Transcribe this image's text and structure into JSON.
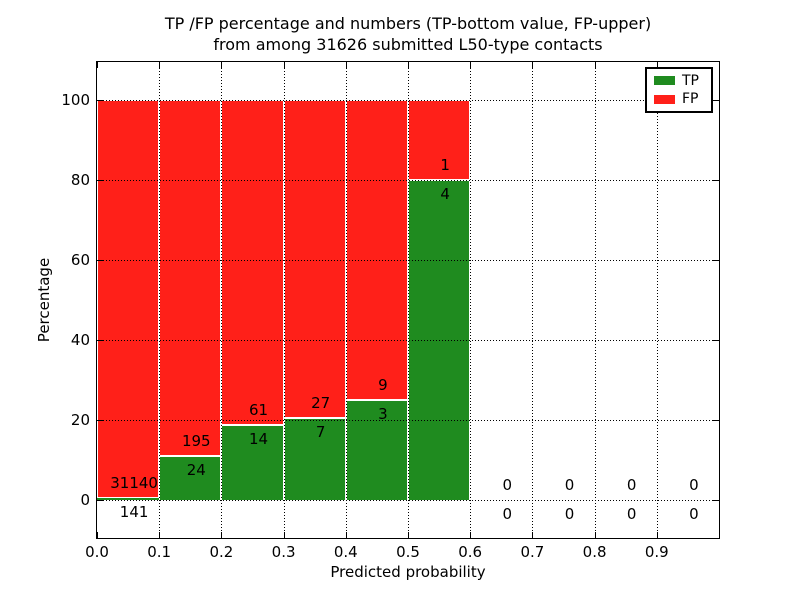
{
  "title": {
    "line1": "TP /FP percentage and numbers (TP-bottom value, FP-upper)",
    "line2": "from among 31626 submitted L50-type contacts"
  },
  "axes": {
    "xlabel": "Predicted probability",
    "ylabel": "Percentage",
    "x_tick_labels": [
      "0.0",
      "0.1",
      "0.2",
      "0.3",
      "0.4",
      "0.5",
      "0.6",
      "0.7",
      "0.8",
      "0.9"
    ],
    "x_tick_values": [
      0.0,
      0.1,
      0.2,
      0.3,
      0.4,
      0.5,
      0.6,
      0.7,
      0.8,
      0.9
    ],
    "y_tick_labels": [
      "0",
      "20",
      "40",
      "60",
      "80",
      "100"
    ],
    "y_tick_values": [
      0,
      20,
      40,
      60,
      80,
      100
    ],
    "xlim": [
      0.0,
      1.0
    ],
    "ylim": [
      -9.5,
      109.5
    ]
  },
  "legend": {
    "items": [
      {
        "label": "TP",
        "color": "#1f8b1f"
      },
      {
        "label": "FP",
        "color": "#ff2019"
      }
    ]
  },
  "chart_data": {
    "type": "bar",
    "stacked": true,
    "title": "TP /FP percentage and numbers (TP-bottom value, FP-upper) from among 31626 submitted L50-type contacts",
    "xlabel": "Predicted probability",
    "ylabel": "Percentage",
    "xlim": [
      0.0,
      1.0
    ],
    "ylim": [
      -9.5,
      109.5
    ],
    "grid": true,
    "legend_position": "upper right",
    "total_submitted": 31626,
    "bin_width": 0.1,
    "categories": [
      "0.0-0.1",
      "0.1-0.2",
      "0.2-0.3",
      "0.3-0.4",
      "0.4-0.5",
      "0.5-0.6",
      "0.6-0.7",
      "0.7-0.8",
      "0.8-0.9",
      "0.9-1.0"
    ],
    "series": [
      {
        "name": "TP",
        "color": "#1f8b1f",
        "percent": [
          0.45,
          10.96,
          18.67,
          20.59,
          25.0,
          80.0,
          0,
          0,
          0,
          0
        ],
        "counts": [
          141,
          24,
          14,
          7,
          3,
          4,
          0,
          0,
          0,
          0
        ]
      },
      {
        "name": "FP",
        "color": "#ff2019",
        "percent": [
          99.55,
          89.04,
          81.33,
          79.41,
          75.0,
          20.0,
          0,
          0,
          0,
          0
        ],
        "counts": [
          31140,
          195,
          61,
          27,
          9,
          1,
          0,
          0,
          0,
          0
        ]
      }
    ]
  }
}
